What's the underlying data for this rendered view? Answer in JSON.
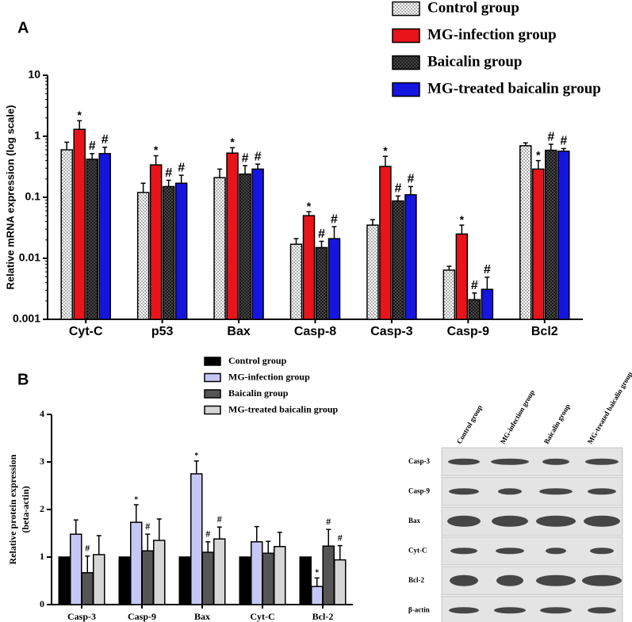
{
  "chart_data": [
    {
      "type": "bar",
      "panel_label": "A",
      "ylabel": [
        "Relative mRNA expression  (log scale)"
      ],
      "log_scale": true,
      "ylim": [
        0.001,
        10
      ],
      "yticks": [
        0.001,
        0.01,
        0.1,
        1,
        10
      ],
      "categories": [
        "Cyt-C",
        "p53",
        "Bax",
        "Casp-8",
        "Casp-3",
        "Casp-9",
        "Bcl2"
      ],
      "series": [
        {
          "name": "Control group",
          "color": "#ffffff",
          "pattern": "dots",
          "values": [
            0.6,
            0.12,
            0.21,
            0.017,
            0.035,
            0.0064,
            0.7
          ],
          "errors": [
            0.2,
            0.05,
            0.08,
            0.004,
            0.008,
            0.001,
            0.08
          ]
        },
        {
          "name": "MG-infection group",
          "color": "#e8141a",
          "values": [
            1.3,
            0.34,
            0.53,
            0.05,
            0.32,
            0.025,
            0.29
          ],
          "errors": [
            0.5,
            0.14,
            0.12,
            0.008,
            0.15,
            0.01,
            0.11
          ],
          "annotations": [
            "*",
            "*",
            "*",
            "*",
            "*",
            "*",
            "*"
          ]
        },
        {
          "name": "Baicalin group",
          "color": "#1a1a1a",
          "pattern": "dots",
          "values": [
            0.42,
            0.15,
            0.24,
            0.015,
            0.087,
            0.0021,
            0.59
          ],
          "errors": [
            0.1,
            0.04,
            0.09,
            0.004,
            0.018,
            0.0006,
            0.15
          ],
          "annotations": [
            "#",
            "#",
            "#",
            "#",
            "#",
            "#",
            "#"
          ]
        },
        {
          "name": "MG-treated baicalin group",
          "color": "#1515e0",
          "values": [
            0.52,
            0.17,
            0.29,
            0.021,
            0.11,
            0.0031,
            0.57
          ],
          "errors": [
            0.14,
            0.06,
            0.06,
            0.012,
            0.04,
            0.0018,
            0.06
          ],
          "annotations": [
            "#",
            "#",
            "#",
            "#",
            "#",
            "#",
            "#"
          ]
        }
      ]
    },
    {
      "type": "bar",
      "panel_label": "B",
      "ylabel": [
        "Relative protein expression",
        "(beta-actin)"
      ],
      "log_scale": false,
      "ylim": [
        0,
        4
      ],
      "yticks": [
        0,
        1,
        2,
        3,
        4
      ],
      "categories": [
        "Casp-3",
        "Casp-9",
        "Bax",
        "Cyt-C",
        "Bcl-2"
      ],
      "series": [
        {
          "name": "Control group",
          "color": "#000000",
          "values": [
            1,
            1,
            1,
            1,
            1
          ]
        },
        {
          "name": "MG-infection group",
          "color": "#c5c8f5",
          "values": [
            1.48,
            1.73,
            2.75,
            1.32,
            0.38
          ],
          "errors": [
            0.3,
            0.37,
            0.27,
            0.32,
            0.18
          ],
          "annotations": [
            null,
            "*",
            "*",
            null,
            "*"
          ]
        },
        {
          "name": "Baicalin group",
          "color": "#555555",
          "values": [
            0.67,
            1.13,
            1.1,
            1.08,
            1.23
          ],
          "errors": [
            0.35,
            0.35,
            0.22,
            0.25,
            0.35
          ],
          "annotations": [
            "#",
            "#",
            "#",
            null,
            "#"
          ]
        },
        {
          "name": "MG-treated baicalin group",
          "color": "#d6d6d6",
          "values": [
            1.05,
            1.35,
            1.38,
            1.22,
            0.94
          ],
          "errors": [
            0.4,
            0.45,
            0.25,
            0.3,
            0.3
          ],
          "annotations": [
            null,
            null,
            "#",
            null,
            "#"
          ]
        }
      ]
    }
  ],
  "blot": {
    "columns": [
      "Control group",
      "MG-infection group",
      "Baicalin group",
      "MG-treated baicalin group"
    ],
    "rows": [
      "Casp-3",
      "Casp-9",
      "Bax",
      "Cyt-C",
      "Bcl-2",
      "β-actin"
    ]
  }
}
